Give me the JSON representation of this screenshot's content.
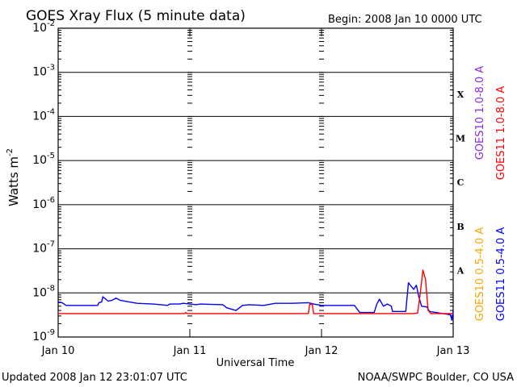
{
  "chart_data": {
    "type": "line",
    "title": "GOES Xray Flux (5 minute data)",
    "begin": "Begin:  2008 Jan 10 0000 UTC",
    "ylabel": "Watts m",
    "ylabel_sup": "-2",
    "xlabel": "Universal Time",
    "y_scale": "log",
    "ylim": [
      1e-09,
      0.01
    ],
    "y_ticks": [
      {
        "base": "10",
        "exp": "-2",
        "value": 0.01
      },
      {
        "base": "10",
        "exp": "-3",
        "value": 0.001
      },
      {
        "base": "10",
        "exp": "-4",
        "value": 0.0001
      },
      {
        "base": "10",
        "exp": "-5",
        "value": 1e-05
      },
      {
        "base": "10",
        "exp": "-6",
        "value": 1e-06
      },
      {
        "base": "10",
        "exp": "-7",
        "value": 1e-07
      },
      {
        "base": "10",
        "exp": "-8",
        "value": 1e-08
      },
      {
        "base": "10",
        "exp": "-9",
        "value": 1e-09
      }
    ],
    "x_range_days": [
      0,
      3
    ],
    "x_ticks": [
      {
        "label": "Jan 10",
        "day": 0
      },
      {
        "label": "Jan 11",
        "day": 1
      },
      {
        "label": "Jan 12",
        "day": 2
      },
      {
        "label": "Jan 13",
        "day": 3
      }
    ],
    "flare_classes": [
      {
        "label": "X",
        "value": 0.00032
      },
      {
        "label": "M",
        "value": 3.2e-05
      },
      {
        "label": "C",
        "value": 3.2e-06
      },
      {
        "label": "B",
        "value": 3.2e-07
      },
      {
        "label": "A",
        "value": 3.2e-08
      }
    ],
    "legend": [
      {
        "label": "GOES10 1.0-8.0 A",
        "color": "#8a2be2"
      },
      {
        "label": "GOES11 1.0-8.0 A",
        "color": "#ff0000"
      },
      {
        "label": "GOES10 0.5-4.0 A",
        "color": "#ffa500"
      },
      {
        "label": "GOES11 0.5-4.0 A",
        "color": "#0000ff"
      }
    ],
    "series": [
      {
        "name": "GOES11 0.5-4.0 A",
        "color": "#0000ff",
        "points": [
          [
            0.0,
            6.2e-09
          ],
          [
            0.03,
            6e-09
          ],
          [
            0.06,
            5.2e-09
          ],
          [
            0.3,
            5.2e-09
          ],
          [
            0.31,
            6e-09
          ],
          [
            0.33,
            6.2e-09
          ],
          [
            0.34,
            8.2e-09
          ],
          [
            0.38,
            6.5e-09
          ],
          [
            0.41,
            6.8e-09
          ],
          [
            0.44,
            7.6e-09
          ],
          [
            0.47,
            6.8e-09
          ],
          [
            0.52,
            6.4e-09
          ],
          [
            0.6,
            5.8e-09
          ],
          [
            0.72,
            5.6e-09
          ],
          [
            0.78,
            5.4e-09
          ],
          [
            0.83,
            5.2e-09
          ],
          [
            0.85,
            5.6e-09
          ],
          [
            0.92,
            5.6e-09
          ],
          [
            0.95,
            5.8e-09
          ],
          [
            1.05,
            5.4e-09
          ],
          [
            1.08,
            5.6e-09
          ],
          [
            1.25,
            5.4e-09
          ],
          [
            1.28,
            4.6e-09
          ],
          [
            1.35,
            4e-09
          ],
          [
            1.4,
            5.2e-09
          ],
          [
            1.45,
            5.4e-09
          ],
          [
            1.56,
            5.2e-09
          ],
          [
            1.65,
            5.8e-09
          ],
          [
            1.78,
            5.8e-09
          ],
          [
            1.9,
            6e-09
          ],
          [
            1.94,
            5.6e-09
          ],
          [
            2.0,
            5.2e-09
          ],
          [
            2.25,
            5.2e-09
          ],
          [
            2.29,
            3.6e-09
          ],
          [
            2.4,
            3.6e-09
          ],
          [
            2.42,
            5.6e-09
          ],
          [
            2.44,
            7.2e-09
          ],
          [
            2.47,
            5e-09
          ],
          [
            2.5,
            5.6e-09
          ],
          [
            2.53,
            5e-09
          ],
          [
            2.54,
            3.8e-09
          ],
          [
            2.64,
            3.8e-09
          ],
          [
            2.66,
            1.7e-08
          ],
          [
            2.7,
            1.2e-08
          ],
          [
            2.72,
            1.5e-08
          ],
          [
            2.74,
            8e-09
          ],
          [
            2.76,
            5e-09
          ],
          [
            2.8,
            4.8e-09
          ],
          [
            2.82,
            3.8e-09
          ],
          [
            2.98,
            3.2e-09
          ],
          [
            2.99,
            2.4e-09
          ],
          [
            3.0,
            4e-09
          ]
        ]
      },
      {
        "name": "GOES11 1.0-8.0 A",
        "color": "#ff0000",
        "points": [
          [
            0.0,
            3.4e-09
          ],
          [
            0.96,
            3.4e-09
          ],
          [
            0.97,
            3.6e-09
          ],
          [
            0.98,
            3.4e-09
          ],
          [
            1.9,
            3.4e-09
          ],
          [
            1.91,
            5.5e-09
          ],
          [
            1.93,
            5.5e-09
          ],
          [
            1.94,
            3.4e-09
          ],
          [
            2.7,
            3.4e-09
          ],
          [
            2.73,
            3.5e-09
          ],
          [
            2.75,
            1e-08
          ],
          [
            2.77,
            3.3e-08
          ],
          [
            2.79,
            2e-08
          ],
          [
            2.81,
            4e-09
          ],
          [
            2.83,
            3.4e-09
          ],
          [
            3.0,
            3.4e-09
          ]
        ]
      }
    ],
    "grid": "horizontal lines at each decade; dashed vertical tick marks at each day",
    "legend_placement": "right side, vertical text"
  },
  "footer": {
    "updated": "Updated 2008 Jan 12 23:01:07 UTC",
    "source": "NOAA/SWPC Boulder, CO USA"
  }
}
